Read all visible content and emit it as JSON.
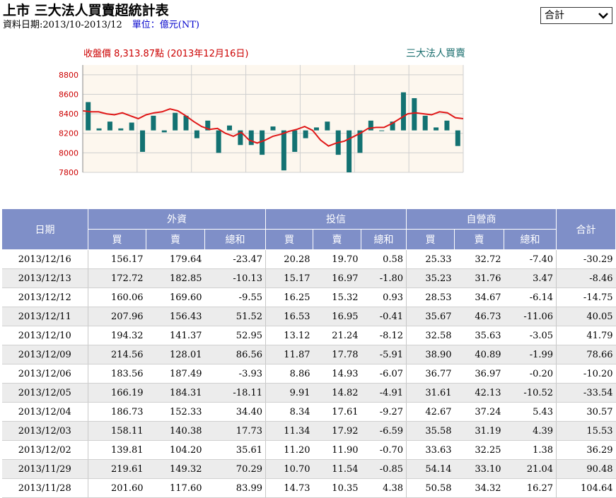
{
  "header": {
    "title": "上市 三大法人買賣超統計表",
    "period": "資料日期:2013/10-2013/12",
    "unit": "單位：億元(NT)"
  },
  "filter": {
    "selected": "合計"
  },
  "chart_data": {
    "type": "bar",
    "title": "收盤價 8,313.87點 (2013年12月16日)",
    "legend_right": "三大法人買賣",
    "y_ticks": [
      "8800",
      "8600",
      "8400",
      "8200",
      "8000",
      "7800"
    ],
    "ylim": [
      7800,
      8900
    ],
    "bar_baseline": 8230,
    "bars": [
      8520,
      8250,
      8320,
      8250,
      8310,
      8010,
      8380,
      8210,
      8410,
      8380,
      8150,
      8330,
      8000,
      8280,
      8080,
      8080,
      7980,
      8270,
      7820,
      8010,
      8150,
      8260,
      8320,
      7980,
      7800,
      8000,
      8330,
      8230,
      8320,
      8620,
      8560,
      8380,
      8260,
      8330,
      8070
    ],
    "line": [
      8430,
      8420,
      8420,
      8400,
      8390,
      8410,
      8380,
      8350,
      8390,
      8410,
      8420,
      8450,
      8430,
      8380,
      8320,
      8270,
      8240,
      8250,
      8200,
      8170,
      8210,
      8130,
      8100,
      8130,
      8170,
      8190,
      8220,
      8240,
      8270,
      8230,
      8130,
      8070,
      8100,
      8120,
      8160,
      8200,
      8250,
      8260,
      8260,
      8300,
      8350,
      8400,
      8410,
      8400,
      8390,
      8420,
      8410,
      8360,
      8350
    ]
  },
  "table": {
    "headers": {
      "date": "日期",
      "groups": [
        "外資",
        "投信",
        "自營商"
      ],
      "total": "合計",
      "sub": [
        "買",
        "賣",
        "總和",
        "買",
        "賣",
        "總和",
        "買",
        "賣",
        "總和"
      ]
    },
    "rows": [
      {
        "date": "2013/12/16",
        "v": [
          "156.17",
          "179.64",
          "-23.47",
          "20.28",
          "19.70",
          "0.58",
          "25.33",
          "32.72",
          "-7.40",
          "-30.29"
        ]
      },
      {
        "date": "2013/12/13",
        "v": [
          "172.72",
          "182.85",
          "-10.13",
          "15.17",
          "16.97",
          "-1.80",
          "35.23",
          "31.76",
          "3.47",
          "-8.46"
        ]
      },
      {
        "date": "2013/12/12",
        "v": [
          "160.06",
          "169.60",
          "-9.55",
          "16.25",
          "15.32",
          "0.93",
          "28.53",
          "34.67",
          "-6.14",
          "-14.75"
        ]
      },
      {
        "date": "2013/12/11",
        "v": [
          "207.96",
          "156.43",
          "51.52",
          "16.53",
          "16.95",
          "-0.41",
          "35.67",
          "46.73",
          "-11.06",
          "40.05"
        ]
      },
      {
        "date": "2013/12/10",
        "v": [
          "194.32",
          "141.37",
          "52.95",
          "13.12",
          "21.24",
          "-8.12",
          "32.58",
          "35.63",
          "-3.05",
          "41.79"
        ]
      },
      {
        "date": "2013/12/09",
        "v": [
          "214.56",
          "128.01",
          "86.56",
          "11.87",
          "17.78",
          "-5.91",
          "38.90",
          "40.89",
          "-1.99",
          "78.66"
        ]
      },
      {
        "date": "2013/12/06",
        "v": [
          "183.56",
          "187.49",
          "-3.93",
          "8.86",
          "14.93",
          "-6.07",
          "36.77",
          "36.97",
          "-0.20",
          "-10.20"
        ]
      },
      {
        "date": "2013/12/05",
        "v": [
          "166.19",
          "184.31",
          "-18.11",
          "9.91",
          "14.82",
          "-4.91",
          "31.61",
          "42.13",
          "-10.52",
          "-33.54"
        ]
      },
      {
        "date": "2013/12/04",
        "v": [
          "186.73",
          "152.33",
          "34.40",
          "8.34",
          "17.61",
          "-9.27",
          "42.67",
          "37.24",
          "5.43",
          "30.57"
        ]
      },
      {
        "date": "2013/12/03",
        "v": [
          "158.11",
          "140.38",
          "17.73",
          "11.34",
          "17.92",
          "-6.59",
          "35.58",
          "31.19",
          "4.39",
          "15.53"
        ]
      },
      {
        "date": "2013/12/02",
        "v": [
          "139.81",
          "104.20",
          "35.61",
          "11.20",
          "11.90",
          "-0.70",
          "33.63",
          "32.25",
          "1.38",
          "36.29"
        ]
      },
      {
        "date": "2013/11/29",
        "v": [
          "219.61",
          "149.32",
          "70.29",
          "10.70",
          "11.54",
          "-0.85",
          "54.14",
          "33.10",
          "21.04",
          "90.48"
        ]
      },
      {
        "date": "2013/11/28",
        "v": [
          "201.60",
          "117.60",
          "83.99",
          "14.73",
          "10.35",
          "4.38",
          "50.58",
          "34.32",
          "16.27",
          "104.64"
        ]
      }
    ]
  }
}
